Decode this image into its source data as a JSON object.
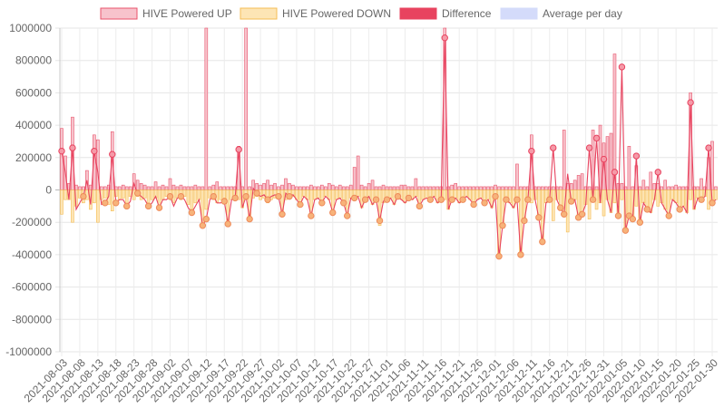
{
  "chart_data": {
    "type": "bar",
    "title": "",
    "xlabel": "",
    "ylabel": "",
    "ylim": [
      -1000000,
      1000000
    ],
    "yticks": [
      1000000,
      800000,
      600000,
      400000,
      200000,
      0,
      -200000,
      -400000,
      -600000,
      -800000,
      -1000000
    ],
    "grid": true,
    "legend_position": "top",
    "x_start": "2021-08-03",
    "x_end": "2022-01-31",
    "xtick_labels": [
      "2021-08-03",
      "2021-08-08",
      "2021-08-13",
      "2021-08-18",
      "2021-08-23",
      "2021-08-28",
      "2021-09-02",
      "2021-09-07",
      "2021-09-12",
      "2021-09-17",
      "2021-09-22",
      "2021-09-27",
      "2021-10-02",
      "2021-10-07",
      "2021-10-12",
      "2021-10-17",
      "2021-10-22",
      "2021-10-27",
      "2021-11-01",
      "2021-11-06",
      "2021-11-11",
      "2021-11-16",
      "2021-11-21",
      "2021-11-26",
      "2021-12-01",
      "2021-12-06",
      "2021-12-11",
      "2021-12-16",
      "2021-12-21",
      "2021-12-26",
      "2021-12-31",
      "2022-01-05",
      "2022-01-10",
      "2022-01-15",
      "2022-01-20",
      "2022-01-25",
      "2022-01-30"
    ],
    "series": [
      {
        "name": "HIVE Powered UP",
        "kind": "bar",
        "color": "#e8536b",
        "fill": "#f7c3cc",
        "values": [
          380000,
          210000,
          40000,
          450000,
          30000,
          20000,
          20000,
          120000,
          30000,
          340000,
          310000,
          20000,
          20000,
          30000,
          360000,
          20000,
          20000,
          30000,
          20000,
          20000,
          100000,
          60000,
          40000,
          30000,
          20000,
          20000,
          50000,
          20000,
          30000,
          20000,
          70000,
          30000,
          20000,
          30000,
          20000,
          20000,
          20000,
          30000,
          20000,
          20000,
          1000000,
          20000,
          30000,
          50000,
          20000,
          20000,
          20000,
          20000,
          20000,
          270000,
          20000,
          1000000,
          20000,
          60000,
          40000,
          30000,
          40000,
          60000,
          30000,
          40000,
          20000,
          30000,
          70000,
          40000,
          30000,
          20000,
          20000,
          20000,
          20000,
          30000,
          20000,
          20000,
          30000,
          20000,
          40000,
          30000,
          20000,
          30000,
          20000,
          20000,
          30000,
          140000,
          210000,
          30000,
          20000,
          40000,
          60000,
          20000,
          20000,
          30000,
          20000,
          20000,
          20000,
          20000,
          30000,
          30000,
          20000,
          20000,
          70000,
          20000,
          20000,
          20000,
          20000,
          20000,
          20000,
          20000,
          1000000,
          20000,
          30000,
          40000,
          20000,
          20000,
          20000,
          20000,
          20000,
          20000,
          20000,
          20000,
          20000,
          20000,
          30000,
          20000,
          20000,
          20000,
          20000,
          20000,
          160000,
          20000,
          20000,
          20000,
          340000,
          20000,
          20000,
          20000,
          20000,
          20000,
          20000,
          20000,
          20000,
          370000,
          40000,
          40000,
          60000,
          90000,
          100000,
          20000,
          20000,
          370000,
          20000,
          400000,
          290000,
          330000,
          350000,
          840000,
          40000,
          40000,
          20000,
          270000,
          20000,
          150000,
          20000,
          60000,
          20000,
          110000,
          40000,
          40000,
          20000,
          60000,
          20000,
          20000,
          30000,
          20000,
          20000,
          20000,
          600000,
          20000,
          20000,
          70000,
          20000,
          200000,
          300000,
          20000,
          60000,
          70000,
          20000,
          470000,
          20000,
          30000,
          20000
        ]
      },
      {
        "name": "HIVE Powered DOWN",
        "kind": "bar",
        "color": "#f5bd55",
        "fill": "#fde5b5",
        "values": [
          -150000,
          -60000,
          -60000,
          -200000,
          -100000,
          -50000,
          -80000,
          -60000,
          -120000,
          -80000,
          -200000,
          -60000,
          -50000,
          -90000,
          -130000,
          -40000,
          -60000,
          -50000,
          -90000,
          -40000,
          -60000,
          -40000,
          -60000,
          -50000,
          -80000,
          -60000,
          -50000,
          -100000,
          -60000,
          -40000,
          -60000,
          -80000,
          -50000,
          -60000,
          -40000,
          -90000,
          -120000,
          -80000,
          -60000,
          -220000,
          -120000,
          -50000,
          -60000,
          -80000,
          -60000,
          -50000,
          -210000,
          -60000,
          -50000,
          -60000,
          -110000,
          -60000,
          -180000,
          -50000,
          -40000,
          -60000,
          -50000,
          -80000,
          -60000,
          -50000,
          -40000,
          -160000,
          -60000,
          -50000,
          -40000,
          -60000,
          -90000,
          -40000,
          -60000,
          -160000,
          -60000,
          -50000,
          -80000,
          -40000,
          -60000,
          -140000,
          -60000,
          -50000,
          -80000,
          -160000,
          -50000,
          -60000,
          -40000,
          -110000,
          -60000,
          -50000,
          -90000,
          -60000,
          -220000,
          -80000,
          -60000,
          -50000,
          -90000,
          -40000,
          -60000,
          -80000,
          -50000,
          -60000,
          -40000,
          -100000,
          -60000,
          -50000,
          -60000,
          -40000,
          -80000,
          -60000,
          -60000,
          -120000,
          -60000,
          -50000,
          -80000,
          -60000,
          -40000,
          -60000,
          -90000,
          -60000,
          -50000,
          -80000,
          -60000,
          -110000,
          -40000,
          -410000,
          -220000,
          -60000,
          -80000,
          -110000,
          -60000,
          -400000,
          -190000,
          -60000,
          -80000,
          -60000,
          -170000,
          -320000,
          -80000,
          -60000,
          -190000,
          -60000,
          -110000,
          -150000,
          -260000,
          -70000,
          -60000,
          -170000,
          -150000,
          -90000,
          -180000,
          -60000,
          -120000,
          -80000,
          -160000,
          -60000,
          -140000,
          -80000,
          -160000,
          -60000,
          -250000,
          -160000,
          -180000,
          -100000,
          -200000,
          -80000,
          -120000,
          -140000,
          -60000,
          -100000,
          -80000,
          -120000,
          -160000,
          -60000,
          -80000,
          -120000,
          -100000,
          -140000,
          -60000,
          -120000,
          -50000,
          -60000,
          -40000,
          -120000,
          -80000,
          -60000,
          -40000,
          -80000,
          -60000,
          -50000,
          -60000,
          -80000,
          -60000,
          -40000,
          -60000
        ]
      },
      {
        "name": "Difference",
        "kind": "line",
        "color": "#e8435f",
        "values": [
          240000,
          110000,
          -60000,
          260000,
          -120000,
          -80000,
          -40000,
          60000,
          -90000,
          240000,
          110000,
          -90000,
          -80000,
          -40000,
          220000,
          -80000,
          -60000,
          -60000,
          -100000,
          -70000,
          40000,
          -20000,
          -40000,
          -60000,
          -100000,
          -80000,
          -40000,
          -110000,
          -60000,
          -60000,
          -40000,
          -100000,
          -50000,
          -40000,
          -60000,
          -110000,
          -140000,
          -100000,
          -60000,
          -220000,
          -180000,
          -60000,
          -40000,
          -80000,
          -80000,
          -70000,
          -210000,
          -60000,
          -50000,
          250000,
          -110000,
          -40000,
          -180000,
          10000,
          -20000,
          -40000,
          -30000,
          -60000,
          -40000,
          -30000,
          -40000,
          -150000,
          -20000,
          -40000,
          -30000,
          -60000,
          -90000,
          -40000,
          -60000,
          -160000,
          -60000,
          -50000,
          -80000,
          -40000,
          -60000,
          -140000,
          -60000,
          -50000,
          -80000,
          -160000,
          -50000,
          -50000,
          -40000,
          -110000,
          -60000,
          -40000,
          -90000,
          -60000,
          -190000,
          -70000,
          -60000,
          -50000,
          -90000,
          -40000,
          -60000,
          -80000,
          -50000,
          -60000,
          -40000,
          -100000,
          -60000,
          -50000,
          -60000,
          -40000,
          -80000,
          -60000,
          940000,
          -120000,
          -60000,
          -50000,
          -80000,
          -60000,
          -40000,
          -60000,
          -90000,
          -60000,
          -50000,
          -80000,
          -60000,
          -110000,
          -40000,
          -410000,
          -220000,
          -60000,
          -80000,
          -110000,
          -60000,
          -400000,
          -190000,
          -60000,
          240000,
          -60000,
          -170000,
          -320000,
          -80000,
          -60000,
          260000,
          -60000,
          -110000,
          -150000,
          100000,
          -70000,
          -60000,
          -170000,
          -150000,
          -90000,
          260000,
          -60000,
          320000,
          -80000,
          190000,
          -60000,
          -140000,
          110000,
          -160000,
          760000,
          -250000,
          -160000,
          -180000,
          210000,
          -200000,
          -80000,
          -120000,
          -140000,
          -60000,
          110000,
          -80000,
          -120000,
          -160000,
          -60000,
          -80000,
          -120000,
          -100000,
          -140000,
          540000,
          -120000,
          -50000,
          -60000,
          -40000,
          260000,
          -80000,
          -60000,
          -40000,
          -80000,
          360000,
          -50000,
          -60000,
          -80000,
          -60000,
          -40000,
          -60000
        ]
      },
      {
        "name": "Average per day",
        "kind": "line",
        "color": "#8a9cf0",
        "fill": "#d4dbfa",
        "values": []
      }
    ]
  }
}
